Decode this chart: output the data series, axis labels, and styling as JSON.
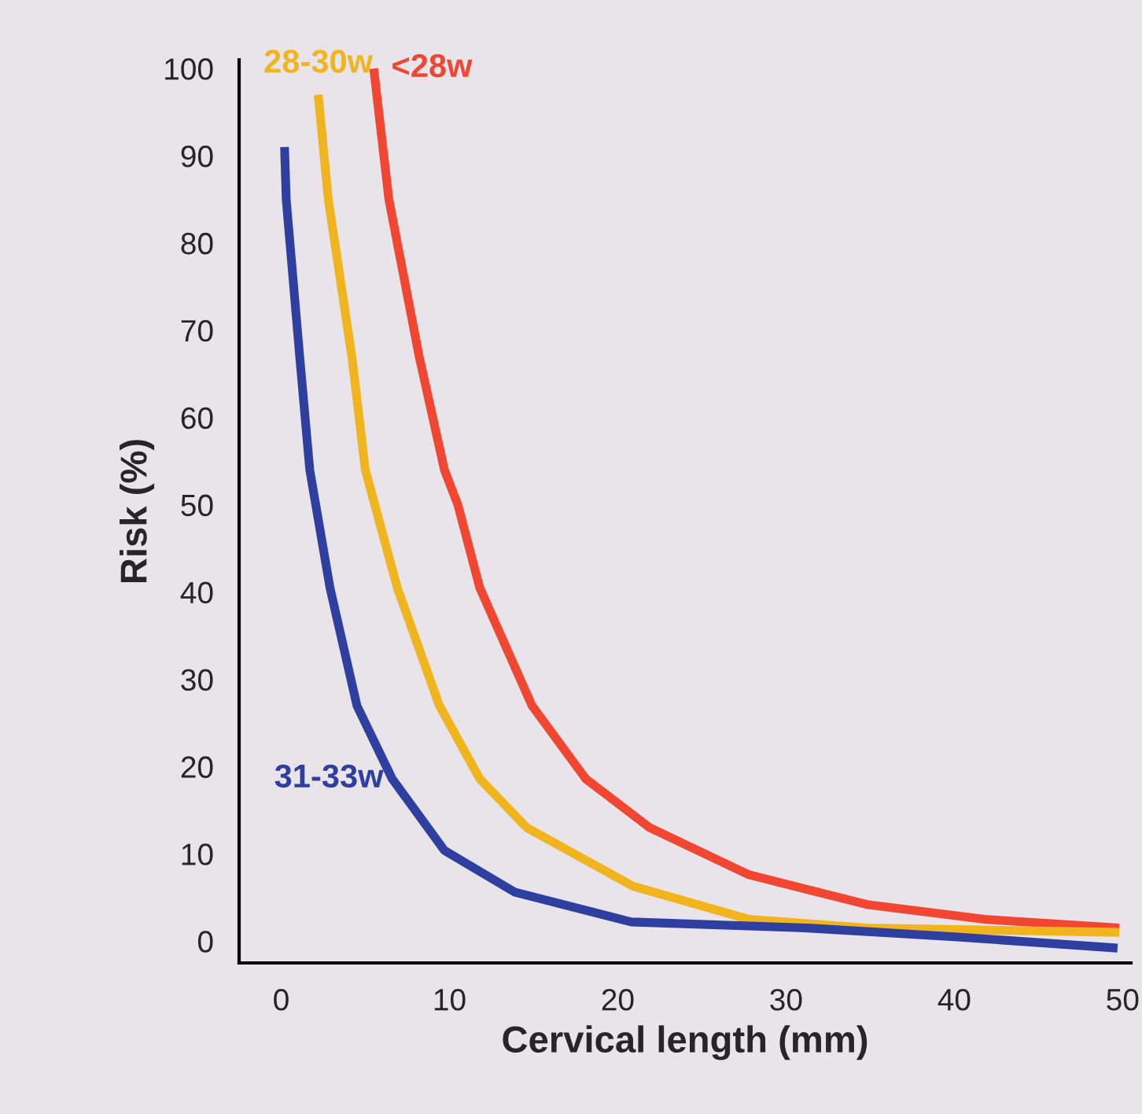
{
  "chart_data": {
    "type": "line",
    "xlabel": "Cervical length (mm)",
    "ylabel": "Risk (%)",
    "xlim": [
      -2.5,
      50.5
    ],
    "ylim": [
      -2.5,
      101
    ],
    "xticks": [
      0,
      10,
      20,
      30,
      40,
      50
    ],
    "yticks": [
      0,
      10,
      20,
      30,
      40,
      50,
      60,
      70,
      80,
      90,
      100
    ],
    "grid": false,
    "legend": false,
    "marker": "none",
    "line_style": "solid",
    "series": [
      {
        "name": "<28w",
        "color": "#f04632",
        "x": [
          5.5,
          6.4,
          8.2,
          9.7,
          10.5,
          11.8,
          14.9,
          18.1,
          21.9,
          27.8,
          34.8,
          41.8,
          49.8
        ],
        "values": [
          100,
          85,
          67,
          54,
          50,
          40.5,
          27,
          18.6,
          13,
          7.6,
          4.2,
          2.5,
          1.5
        ]
      },
      {
        "name": "28-30w",
        "color": "#f0b41e",
        "x": [
          2.2,
          2.8,
          4.2,
          5.0,
          6.9,
          9.4,
          11.8,
          14.6,
          20.9,
          27.8,
          34.8,
          49.8
        ],
        "values": [
          97,
          85,
          67,
          54,
          40.5,
          27,
          18.6,
          13,
          6.3,
          2.5,
          1.5,
          1.0
        ]
      },
      {
        "name": "31-33w",
        "color": "#2e3fa0",
        "x": [
          0.2,
          0.3,
          1.1,
          1.7,
          2.9,
          4.5,
          6.6,
          9.7,
          13.9,
          20.8,
          31.3,
          40,
          49.7
        ],
        "values": [
          91,
          85,
          67,
          54,
          40.5,
          27,
          18.6,
          10.4,
          5.6,
          2.2,
          1.5,
          0.5,
          -0.8
        ]
      }
    ]
  }
}
